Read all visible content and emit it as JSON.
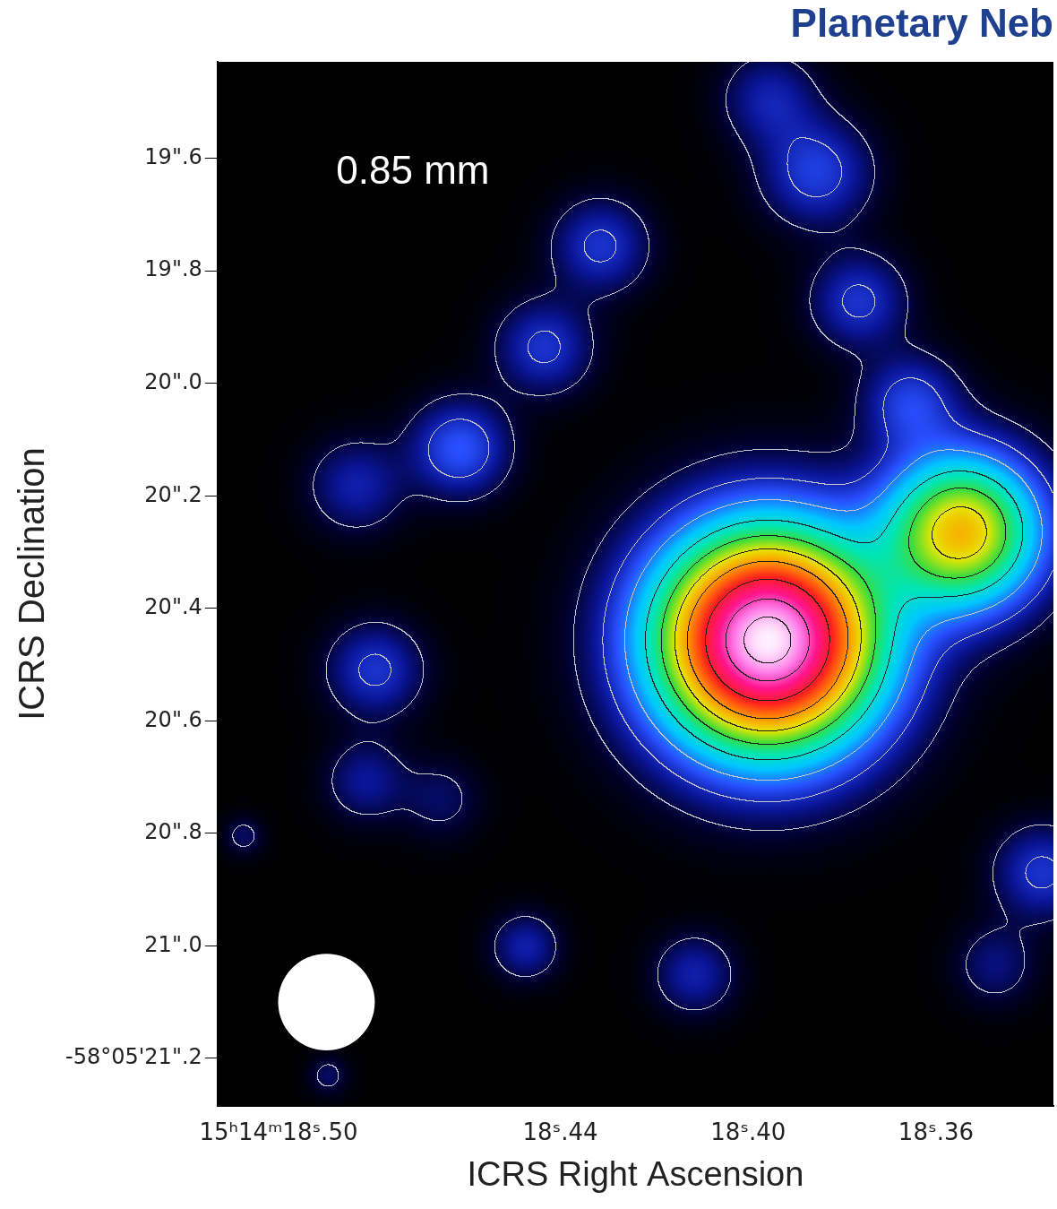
{
  "chart_data": {
    "type": "image",
    "title": "Planetary Neb",
    "x_label": "ICRS Right Ascension",
    "y_label": "ICRS Declination",
    "xlim": [
      18.513,
      18.335
    ],
    "ylim": [
      21.285,
      19.428
    ],
    "xticks": [
      {
        "value": 18.5,
        "label": "15ʰ14ᵐ18ˢ.50"
      },
      {
        "value": 18.44,
        "label": "18ˢ.44"
      },
      {
        "value": 18.4,
        "label": "18ˢ.40"
      },
      {
        "value": 18.36,
        "label": "18ˢ.36"
      }
    ],
    "yticks": [
      {
        "value": 19.6,
        "label": "19\".6"
      },
      {
        "value": 19.8,
        "label": "19\".8"
      },
      {
        "value": 20.0,
        "label": "20\".0"
      },
      {
        "value": 20.2,
        "label": "20\".2"
      },
      {
        "value": 20.4,
        "label": "20\".4"
      },
      {
        "value": 20.6,
        "label": "20\".6"
      },
      {
        "value": 20.8,
        "label": "20\".8"
      },
      {
        "value": 21.0,
        "label": "21\".0"
      },
      {
        "value": 21.2,
        "label": "-58°05'21\".2"
      }
    ],
    "grid": false,
    "annotations": [
      {
        "text": "0.85 mm",
        "x": 18.4714,
        "y": 19.625
      }
    ],
    "beam": {
      "x": 18.4898,
      "y": 21.1,
      "diameter": 0.172
    },
    "contour_levels": [
      0.03,
      0.08,
      0.15,
      0.25,
      0.35,
      0.45,
      0.55,
      0.7,
      0.85,
      0.95
    ],
    "components": [
      {
        "ra": 18.3958,
        "dec": 20.457,
        "peak": 1.0,
        "sigma_ra": 0.0156,
        "sigma_dec": 0.128
      },
      {
        "ra": 18.3544,
        "dec": 20.264,
        "peak": 0.5,
        "sigma_ra": 0.011,
        "sigma_dec": 0.09
      },
      {
        "ra": 18.4314,
        "dec": 19.756,
        "peak": 0.09,
        "sigma_ra": 0.007,
        "sigma_dec": 0.057
      },
      {
        "ra": 18.4434,
        "dec": 19.936,
        "peak": 0.09,
        "sigma_ra": 0.007,
        "sigma_dec": 0.057
      },
      {
        "ra": 18.4614,
        "dec": 20.116,
        "peak": 0.12,
        "sigma_ra": 0.007,
        "sigma_dec": 0.057
      },
      {
        "ra": 18.4834,
        "dec": 20.182,
        "peak": 0.07,
        "sigma_ra": 0.007,
        "sigma_dec": 0.057
      },
      {
        "ra": 18.3854,
        "dec": 19.625,
        "peak": 0.1,
        "sigma_ra": 0.008,
        "sigma_dec": 0.065
      },
      {
        "ra": 18.3954,
        "dec": 19.494,
        "peak": 0.07,
        "sigma_ra": 0.007,
        "sigma_dec": 0.057
      },
      {
        "ra": 18.3764,
        "dec": 19.854,
        "peak": 0.09,
        "sigma_ra": 0.007,
        "sigma_dec": 0.057
      },
      {
        "ra": 18.3654,
        "dec": 20.034,
        "peak": 0.1,
        "sigma_ra": 0.007,
        "sigma_dec": 0.057
      },
      {
        "ra": 18.4794,
        "dec": 20.51,
        "peak": 0.09,
        "sigma_ra": 0.007,
        "sigma_dec": 0.057
      },
      {
        "ra": 18.4814,
        "dec": 20.707,
        "peak": 0.06,
        "sigma_ra": 0.006,
        "sigma_dec": 0.05
      },
      {
        "ra": 18.4474,
        "dec": 21.002,
        "peak": 0.07,
        "sigma_ra": 0.005,
        "sigma_dec": 0.041
      },
      {
        "ra": 18.4114,
        "dec": 21.051,
        "peak": 0.07,
        "sigma_ra": 0.006,
        "sigma_dec": 0.049
      },
      {
        "ra": 18.4654,
        "dec": 20.739,
        "peak": 0.04,
        "sigma_ra": 0.006,
        "sigma_dec": 0.05
      },
      {
        "ra": 18.3374,
        "dec": 20.87,
        "peak": 0.09,
        "sigma_ra": 0.007,
        "sigma_dec": 0.057
      },
      {
        "ra": 18.3474,
        "dec": 21.034,
        "peak": 0.05,
        "sigma_ra": 0.006,
        "sigma_dec": 0.05
      },
      {
        "ra": 18.5074,
        "dec": 20.805,
        "peak": 0.04,
        "sigma_ra": 0.003,
        "sigma_dec": 0.025
      },
      {
        "ra": 18.4894,
        "dec": 21.231,
        "peak": 0.04,
        "sigma_ra": 0.003,
        "sigma_dec": 0.025
      }
    ]
  }
}
